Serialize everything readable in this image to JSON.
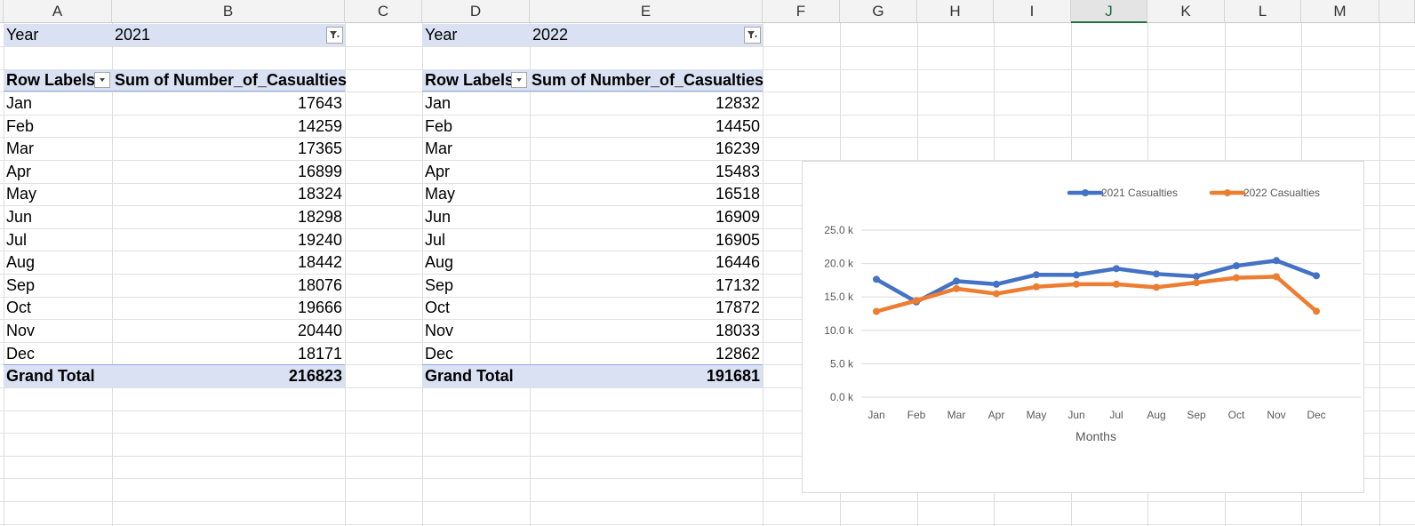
{
  "columns": [
    "A",
    "B",
    "C",
    "D",
    "E",
    "F",
    "G",
    "H",
    "I",
    "J",
    "K",
    "L",
    "M"
  ],
  "selected_column": "J",
  "pivot_2021": {
    "filter_label": "Year",
    "filter_value": "2021",
    "row_header": "Row Labels",
    "value_header": "Sum of Number_of_Casualties",
    "rows": [
      {
        "label": "Jan",
        "value": "17643"
      },
      {
        "label": "Feb",
        "value": "14259"
      },
      {
        "label": "Mar",
        "value": "17365"
      },
      {
        "label": "Apr",
        "value": "16899"
      },
      {
        "label": "May",
        "value": "18324"
      },
      {
        "label": "Jun",
        "value": "18298"
      },
      {
        "label": "Jul",
        "value": "19240"
      },
      {
        "label": "Aug",
        "value": "18442"
      },
      {
        "label": "Sep",
        "value": "18076"
      },
      {
        "label": "Oct",
        "value": "19666"
      },
      {
        "label": "Nov",
        "value": "20440"
      },
      {
        "label": "Dec",
        "value": "18171"
      }
    ],
    "total_label": "Grand Total",
    "total_value": "216823"
  },
  "pivot_2022": {
    "filter_label": "Year",
    "filter_value": "2022",
    "row_header": "Row Labels",
    "value_header": "Sum of Number_of_Casualties",
    "rows": [
      {
        "label": "Jan",
        "value": "12832"
      },
      {
        "label": "Feb",
        "value": "14450"
      },
      {
        "label": "Mar",
        "value": "16239"
      },
      {
        "label": "Apr",
        "value": "15483"
      },
      {
        "label": "May",
        "value": "16518"
      },
      {
        "label": "Jun",
        "value": "16909"
      },
      {
        "label": "Jul",
        "value": "16905"
      },
      {
        "label": "Aug",
        "value": "16446"
      },
      {
        "label": "Sep",
        "value": "17132"
      },
      {
        "label": "Oct",
        "value": "17872"
      },
      {
        "label": "Nov",
        "value": "18033"
      },
      {
        "label": "Dec",
        "value": "12862"
      }
    ],
    "total_label": "Grand Total",
    "total_value": "191681"
  },
  "chart_data": {
    "type": "line",
    "categories": [
      "Jan",
      "Feb",
      "Mar",
      "Apr",
      "May",
      "Jun",
      "Jul",
      "Aug",
      "Sep",
      "Oct",
      "Nov",
      "Dec"
    ],
    "series": [
      {
        "name": "2021 Casualties",
        "color": "#4472c4",
        "values": [
          17643,
          14259,
          17365,
          16899,
          18324,
          18298,
          19240,
          18442,
          18076,
          19666,
          20440,
          18171
        ]
      },
      {
        "name": "2022 Casualties",
        "color": "#ed7d31",
        "values": [
          12832,
          14450,
          16239,
          15483,
          16518,
          16909,
          16905,
          16446,
          17132,
          17872,
          18033,
          12862
        ]
      }
    ],
    "xlabel": "Months",
    "ylabel": "",
    "ylim": [
      0,
      25000
    ],
    "yticks": [
      0,
      5000,
      10000,
      15000,
      20000,
      25000
    ],
    "ytick_labels": [
      "0.0 k",
      "5.0 k",
      "10.0 k",
      "15.0 k",
      "20.0 k",
      "25.0 k"
    ],
    "legend_position": "top-right",
    "grid": true
  }
}
